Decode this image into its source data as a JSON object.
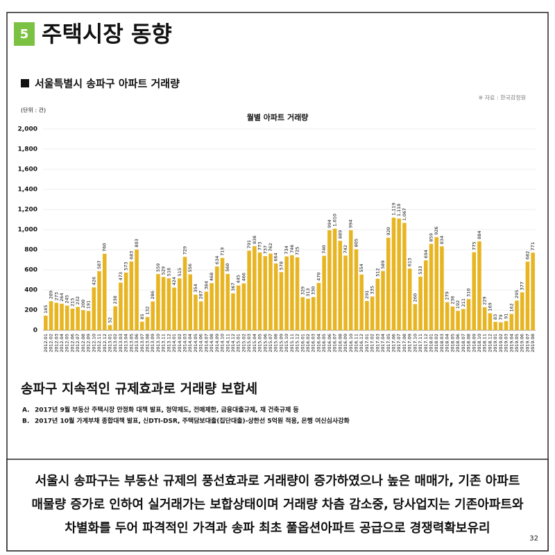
{
  "section_number": "5",
  "title": "주택시장 동향",
  "subtitle": "서울특별시 송파구 아파트 거래량",
  "source": "※ 자료 : 한국감정원",
  "chart_data": {
    "type": "bar",
    "title": "월별 아파트 거래량",
    "unit_label": "(단위 : 건)",
    "color": "#e8b522",
    "grid": true,
    "ylim": [
      0,
      2000
    ],
    "yticks": [
      0,
      200,
      400,
      600,
      800,
      {
        "value": 1000,
        "label": "1,000"
      },
      {
        "value": 1200,
        "label": "1,200"
      },
      {
        "value": 1400,
        "label": "1,400"
      },
      {
        "value": 1600,
        "label": "1,600"
      },
      {
        "value": 1800,
        "label": "1,800"
      },
      {
        "value": 2000,
        "label": "2,000"
      }
    ],
    "categories": [
      "2012.01",
      "2012.02",
      "2012.03",
      "2012.04",
      "2012.05",
      "2012.06",
      "2012.07",
      "2012.08",
      "2012.09",
      "2012.10",
      "2012.11",
      "2012.12",
      "2013.01",
      "2013.02",
      "2013.03",
      "2013.04",
      "2013.05",
      "2013.06",
      "2013.07",
      "2013.08",
      "2013.09",
      "2013.10",
      "2013.11",
      "2013.12",
      "2014.01",
      "2014.02",
      "2014.03",
      "2014.04",
      "2014.05",
      "2014.06",
      "2014.07",
      "2014.08",
      "2014.09",
      "2014.10",
      "2014.11",
      "2014.12",
      "2015.01",
      "2015.02",
      "2015.03",
      "2015.04",
      "2015.05",
      "2015.06",
      "2015.07",
      "2015.08",
      "2015.09",
      "2015.10",
      "2015.11",
      "2015.12",
      "2016.01",
      "2016.02",
      "2016.03",
      "2016.04",
      "2016.05",
      "2016.06",
      "2016.07",
      "2016.08",
      "2016.09",
      "2016.10",
      "2016.11",
      "2016.12",
      "2017.01",
      "2017.02",
      "2017.03",
      "2017.04",
      "2017.05",
      "2017.06",
      "2017.07",
      "2017.08",
      "2017.09",
      "2017.10",
      "2017.11",
      "2017.12",
      "2018.01",
      "2018.02",
      "2018.03",
      "2018.04",
      "2018.05",
      "2018.06",
      "2018.07",
      "2018.08",
      "2018.09",
      "2018.10",
      "2018.11",
      "2018.12",
      "2019.01",
      "2019.02",
      "2019.03",
      "2019.04",
      "2019.05",
      "2019.06",
      "2019.07",
      "2019.08"
    ],
    "values": [
      145,
      289,
      273,
      264,
      245,
      215,
      232,
      200,
      191,
      426,
      587,
      760,
      52,
      238,
      473,
      573,
      683,
      803,
      85,
      132,
      286,
      559,
      529,
      516,
      424,
      515,
      729,
      556,
      354,
      287,
      384,
      468,
      634,
      719,
      560,
      367,
      445,
      466,
      791,
      836,
      773,
      737,
      762,
      664,
      578,
      734,
      746,
      725,
      329,
      313,
      330,
      470,
      740,
      994,
      1010,
      889,
      742,
      994,
      805,
      554,
      291,
      335,
      512,
      589,
      920,
      1119,
      1110,
      1067,
      613,
      260,
      533,
      694,
      859,
      926,
      834,
      279,
      236,
      192,
      211,
      310,
      775,
      884,
      229,
      169,
      83,
      79,
      91,
      162,
      295,
      377,
      682,
      771
    ],
    "value_labels": [
      "145",
      "289",
      "273",
      "264",
      "245",
      "215",
      "232",
      "200",
      "191",
      "426",
      "587",
      "760",
      "52",
      "238",
      "473",
      "573",
      "683",
      "803",
      "85",
      "132",
      "286",
      "559",
      "529",
      "516",
      "424",
      "515",
      "729",
      "556",
      "354",
      "287",
      "384",
      "468",
      "634",
      "719",
      "560",
      "367",
      "445",
      "466",
      "791",
      "836",
      "773",
      "737",
      "762",
      "664",
      "578",
      "734",
      "746",
      "725",
      "329",
      "313",
      "330",
      "470",
      "740",
      "994",
      "1,010",
      "889",
      "742",
      "994",
      "805",
      "554",
      "291",
      "335",
      "512",
      "589",
      "920",
      "1,119",
      "1,110",
      "1,067",
      "613",
      "260",
      "533",
      "694",
      "859",
      "926",
      "834",
      "279",
      "236",
      "192",
      "211",
      "310",
      "775",
      "884",
      "229",
      "169",
      "83",
      "79",
      "91",
      "162",
      "295",
      "377",
      "682",
      "771"
    ]
  },
  "heading": "송파구 지속적인 규제효과로 거래량 보합세",
  "bullets": [
    {
      "label": "A.",
      "text": "2017년 9월 부동산 주택시장 안정화 대책 발표, 청약제도, 전매제한, 금융대출규제, 재 건축규제 등"
    },
    {
      "label": "B.",
      "text": "2017년 10월 가계부채 종합대책 발표, 신DTI-DSR, 주택담보대출(집단대출)-상한선 5억원 적용, 은행 여신심사강화"
    }
  ],
  "summary": [
    "서울시 송파구는 부동산 규제의 풍선효과로 거래량이 증가하였으나 높은 매매가, 기존 아파트",
    "매물량 증가로 인하여 실거래가는 보합상태이며 거래량 차츰 감소중, 당사업지는 기존아파트와",
    "차별화를 두어 파격적인 가격과 송파 최초 풀옵션아파트 공급으로 경쟁력확보유리"
  ],
  "page_number": "32"
}
